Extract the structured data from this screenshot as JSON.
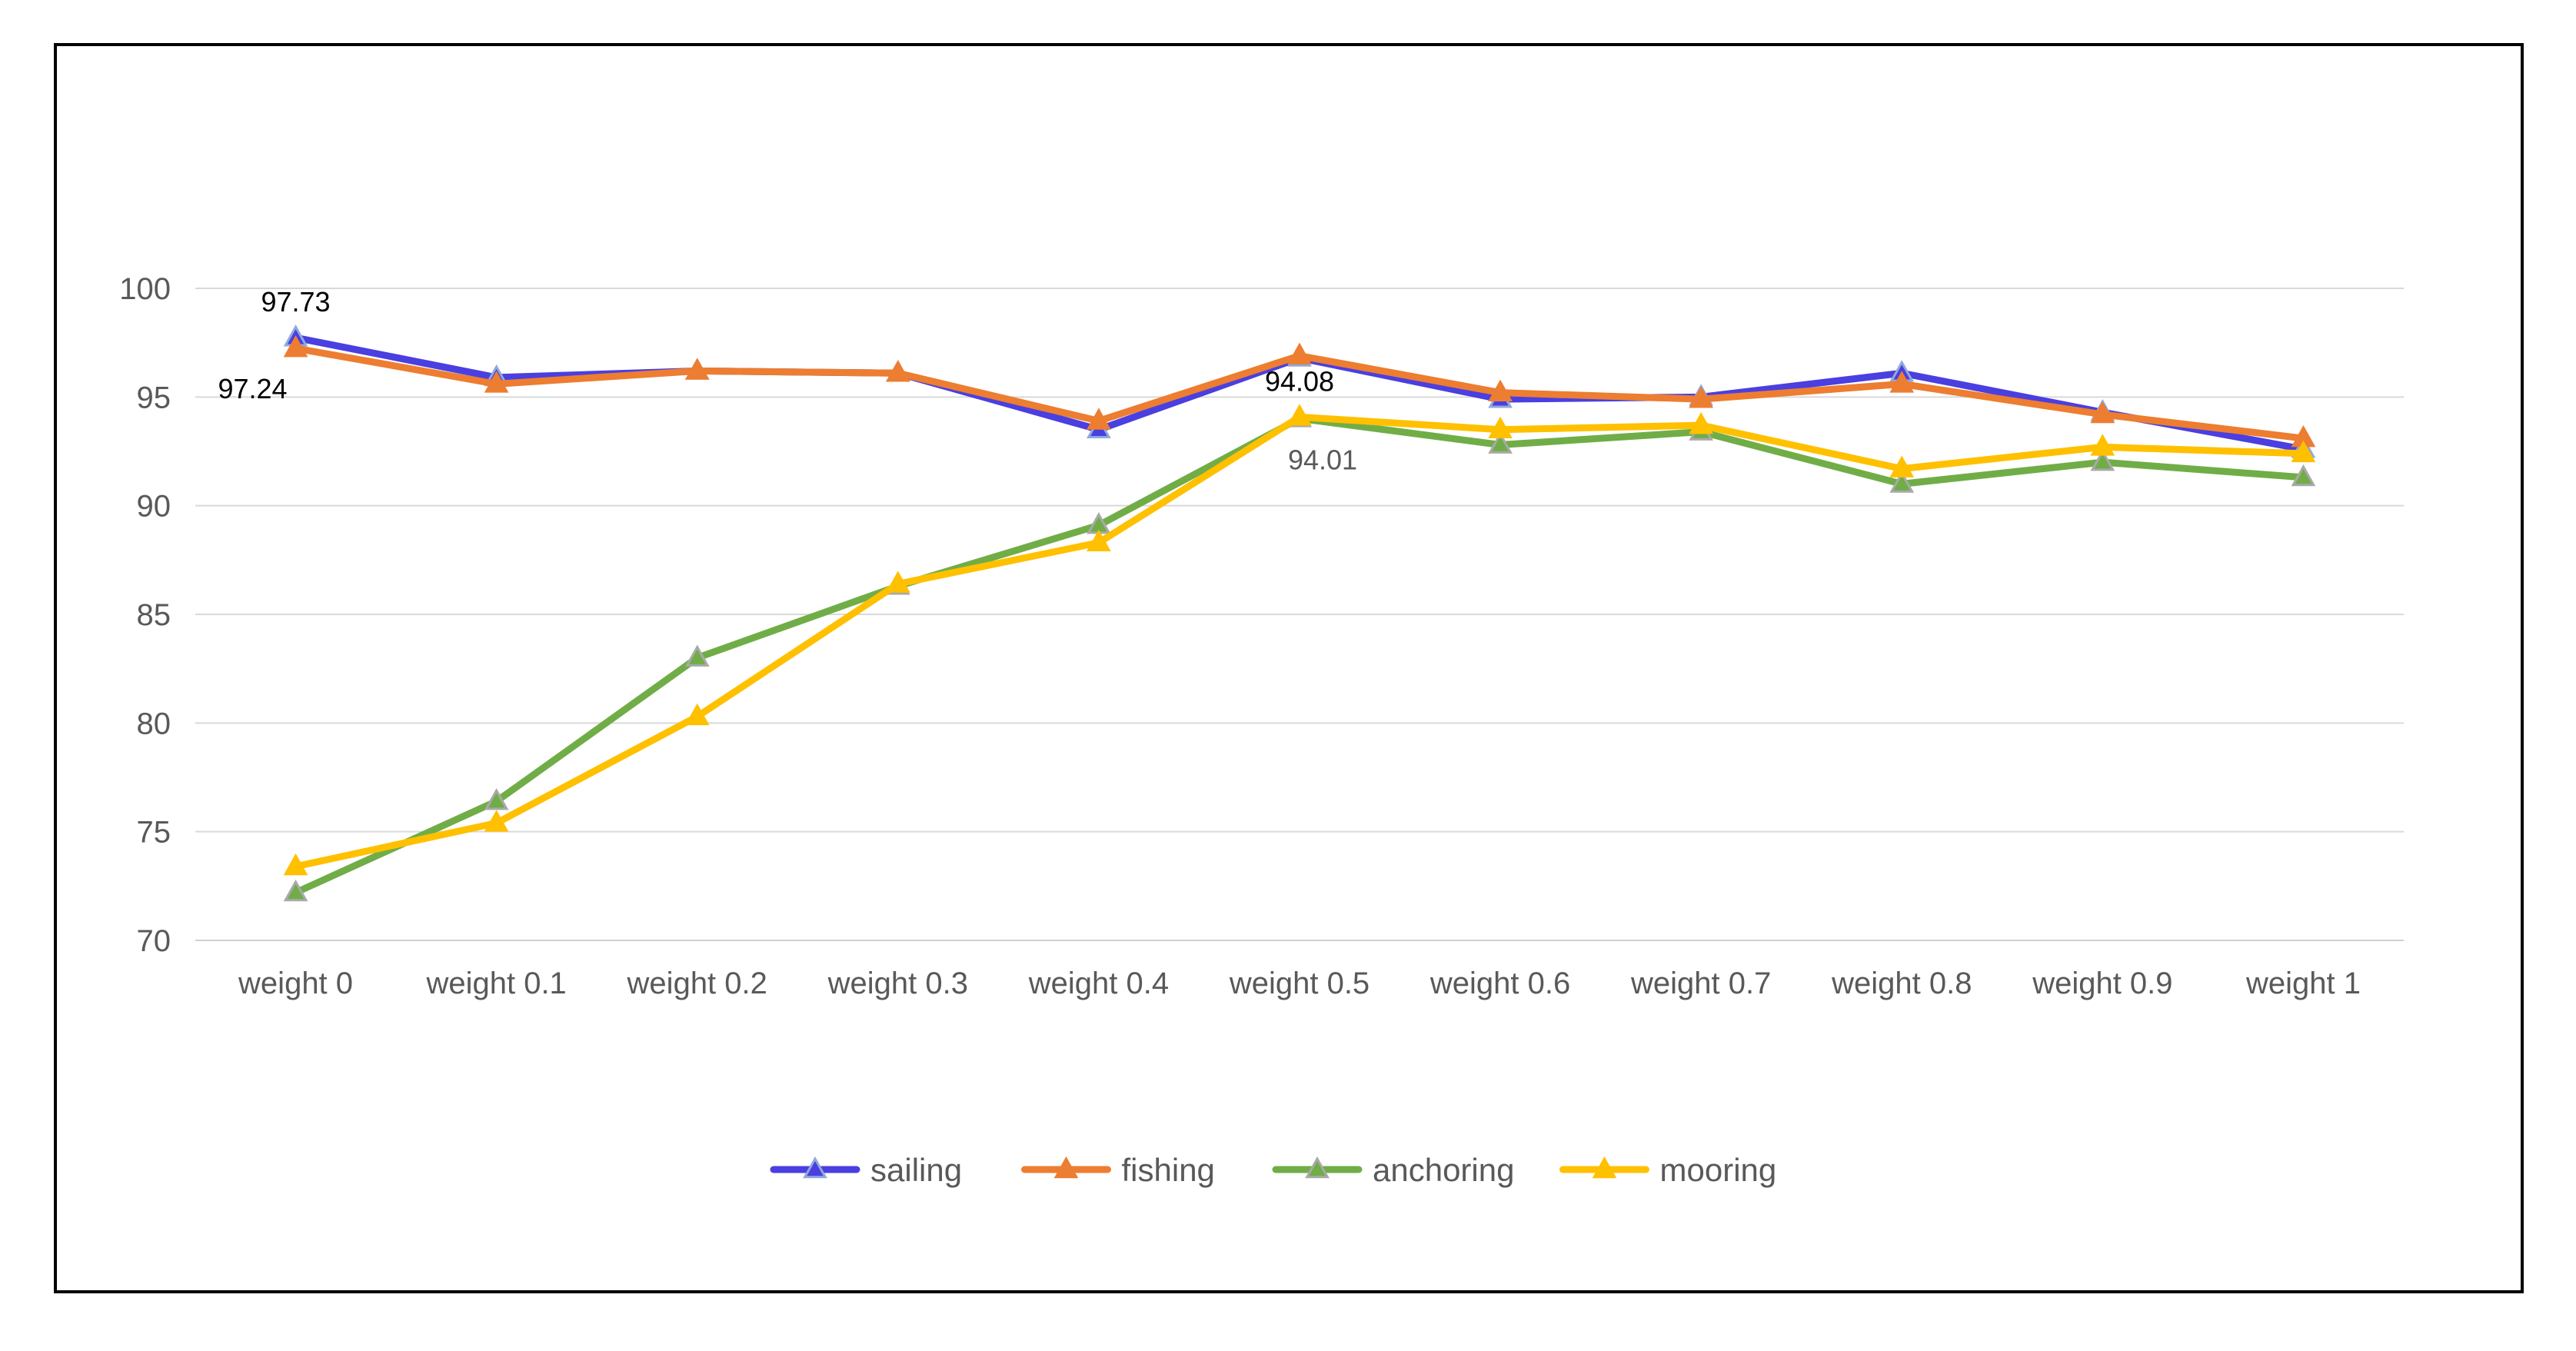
{
  "chart_data": {
    "type": "line",
    "title": "",
    "xlabel": "",
    "ylabel": "",
    "categories": [
      "weight 0",
      "weight 0.1",
      "weight 0.2",
      "weight 0.3",
      "weight 0.4",
      "weight 0.5",
      "weight 0.6",
      "weight 0.7",
      "weight 0.8",
      "weight 0.9",
      "weight 1"
    ],
    "ylim": [
      70,
      100
    ],
    "yticks": [
      70,
      75,
      80,
      85,
      90,
      95,
      100
    ],
    "grid": true,
    "legend_position": "bottom",
    "marker": "triangle",
    "series": [
      {
        "name": "sailing",
        "color": "#4a3fe0",
        "values": [
          97.73,
          95.9,
          96.2,
          96.1,
          93.5,
          96.8,
          94.9,
          95.0,
          96.1,
          94.3,
          92.6
        ]
      },
      {
        "name": "fishing",
        "color": "#ed7d31",
        "values": [
          97.24,
          95.6,
          96.2,
          96.1,
          93.9,
          96.9,
          95.2,
          94.9,
          95.6,
          94.2,
          93.1
        ]
      },
      {
        "name": "anchoring",
        "color": "#70ad47",
        "values": [
          72.2,
          76.4,
          83.0,
          86.3,
          89.1,
          94.01,
          92.8,
          93.4,
          91.0,
          92.0,
          91.3
        ]
      },
      {
        "name": "mooring",
        "color": "#ffc000",
        "values": [
          73.4,
          75.4,
          80.3,
          86.4,
          88.3,
          94.08,
          93.5,
          93.7,
          91.7,
          92.7,
          92.4
        ]
      }
    ],
    "data_labels": [
      {
        "series": "sailing",
        "index": 0,
        "text": "97.73",
        "position": "above",
        "color": "#000000"
      },
      {
        "series": "fishing",
        "index": 0,
        "text": "97.24",
        "position": "below-left",
        "color": "#000000"
      },
      {
        "series": "mooring",
        "index": 5,
        "text": "94.08",
        "position": "above",
        "color": "#000000"
      },
      {
        "series": "anchoring",
        "index": 5,
        "text": "94.01",
        "position": "below",
        "color": "#595959"
      }
    ]
  }
}
